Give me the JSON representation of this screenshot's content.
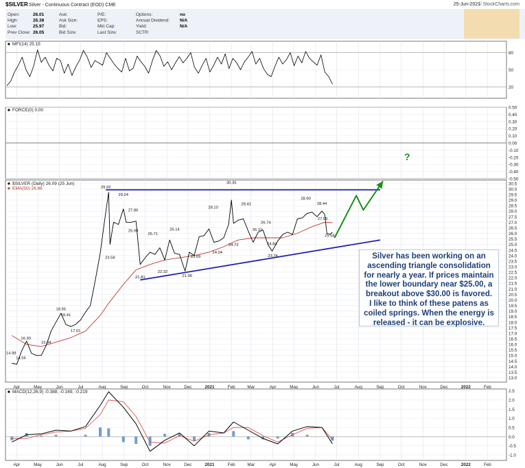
{
  "header": {
    "title_symbol": "$SILVER",
    "title_desc": "Silver - Continuous Contract (EOD) CME",
    "date": "25-Jun-2021",
    "source": "© StockCharts.com",
    "quote": [
      {
        "label": "Open:",
        "value": "26.01"
      },
      {
        "label": "High:",
        "value": "26.38"
      },
      {
        "label": "Low:",
        "value": "25.97"
      },
      {
        "label": "Prev Close:",
        "value": "26.05"
      },
      {
        "label": "Ask:",
        "value": ""
      },
      {
        "label": "Ask Size:",
        "value": ""
      },
      {
        "label": "Bid:",
        "value": ""
      },
      {
        "label": "Bid Size:",
        "value": ""
      },
      {
        "label": "P/E:",
        "value": ""
      },
      {
        "label": "EPS:",
        "value": ""
      },
      {
        "label": "Mkt Cap:",
        "value": ""
      },
      {
        "label": "Last Size:",
        "value": ""
      },
      {
        "label": "Options:",
        "value": "no"
      },
      {
        "label": "Annual Dividend:",
        "value": "N/A"
      },
      {
        "label": "Yield:",
        "value": "N/A"
      },
      {
        "label": "SCTR:",
        "value": ""
      }
    ]
  },
  "colors": {
    "price": "#000000",
    "ema": "#c0392b",
    "trendline": "#1f1fb4",
    "forecast": "#1a8f1a",
    "macd": "#000000",
    "signal": "#d9534f",
    "histogram": "#3f7fbf",
    "annotation_text": "#1c3f7a"
  },
  "annotation": {
    "text": "Silver has been working on an ascending triangle consolidation for nearly a year. If prices maintain the lower boundary near $25.00, a breakout above $30.00 is favored. I like to think of these patens as coiled springs. When the energy is released - it can be explosive.",
    "question_mark": "?"
  },
  "chart_data": [
    {
      "type": "line",
      "panel": "mfi",
      "title": "MFI(14) 25.15",
      "y_ticks": [
        "80",
        "50",
        "20"
      ],
      "ylim": [
        0,
        100
      ],
      "x_ticks": [
        "Apr",
        "May",
        "Jun",
        "Jul",
        "Aug",
        "Sep",
        "Oct",
        "Nov",
        "Dec",
        "2021",
        "Feb",
        "Mar",
        "Apr",
        "May",
        "Jun",
        "Jul"
      ],
      "values": [
        22,
        30,
        46,
        58,
        72,
        50,
        38,
        57,
        85,
        63,
        72,
        58,
        48,
        70,
        66,
        44,
        60,
        40,
        55,
        67,
        84,
        72,
        54,
        66,
        62,
        58,
        80,
        70,
        60,
        52,
        46,
        70,
        48,
        53,
        74,
        64,
        56,
        44,
        66,
        84,
        74,
        56,
        64,
        50,
        62,
        73,
        62,
        70,
        80,
        54,
        44,
        58,
        70,
        46,
        58,
        72,
        60,
        78,
        52,
        70,
        62,
        50,
        64,
        72,
        82,
        60,
        70,
        52,
        42,
        38,
        56,
        72,
        60,
        68,
        80,
        57,
        74,
        62,
        82,
        70,
        64,
        58,
        76,
        46,
        38,
        25
      ]
    },
    {
      "type": "line",
      "panel": "force",
      "title": "FORCE(0) 0.00",
      "y_ticks": [
        "0.50",
        "0.40",
        "0.30",
        "0.20",
        "0.10",
        "0.00",
        "-0.10",
        "-0.20",
        "-0.30",
        "-0.40",
        "-0.50"
      ],
      "ylim": [
        -0.5,
        0.5
      ],
      "values": [
        0
      ]
    },
    {
      "type": "line",
      "panel": "price",
      "title": "$SILVER (Daily) 26.09 (25 Jun)",
      "ema_label": "EMA(50) 26.96",
      "x_ticks": [
        "Apr",
        "May",
        "Jun",
        "Jul",
        "Aug",
        "Sep",
        "Oct",
        "Nov",
        "Dec",
        "2021",
        "Feb",
        "Mar",
        "Apr",
        "May",
        "Jun",
        "Jul",
        "Aug",
        "Sep",
        "Oct",
        "Nov",
        "Dec",
        "2022",
        "Feb"
      ],
      "y_ticks": [
        "30.5",
        "30.0",
        "29.5",
        "29.0",
        "28.5",
        "28.0",
        "27.5",
        "27.0",
        "26.5",
        "26.0",
        "25.5",
        "25.0",
        "24.5",
        "24.0",
        "23.5",
        "23.0",
        "22.5",
        "22.0",
        "21.5",
        "21.0",
        "20.5",
        "20.0",
        "19.5",
        "19.0",
        "18.5",
        "18.0",
        "17.5",
        "17.0",
        "16.5",
        "16.0",
        "15.5",
        "15.0",
        "14.5",
        "14.0",
        "13.5",
        "13.0"
      ],
      "ylim": [
        12.6,
        30.8
      ],
      "price": [
        [
          "2020-03-25",
          14.3
        ],
        [
          "2020-04-01",
          14.2
        ],
        [
          "2020-04-08",
          15.4
        ],
        [
          "2020-04-15",
          16.3
        ],
        [
          "2020-04-22",
          15.2
        ],
        [
          "2020-04-29",
          15.0
        ],
        [
          "2020-05-06",
          15.0
        ],
        [
          "2020-05-13",
          15.9
        ],
        [
          "2020-05-20",
          17.2
        ],
        [
          "2020-05-27",
          18.0
        ],
        [
          "2020-06-03",
          18.8
        ],
        [
          "2020-06-10",
          17.8
        ],
        [
          "2020-06-17",
          17.6
        ],
        [
          "2020-06-24",
          17.8
        ],
        [
          "2020-07-01",
          18.2
        ],
        [
          "2020-07-08",
          18.9
        ],
        [
          "2020-07-15",
          19.5
        ],
        [
          "2020-07-22",
          21.8
        ],
        [
          "2020-07-29",
          24.2
        ],
        [
          "2020-08-05",
          27.5
        ],
        [
          "2020-08-10",
          29.7
        ],
        [
          "2020-08-12",
          25.0
        ],
        [
          "2020-08-17",
          27.0
        ],
        [
          "2020-08-24",
          26.8
        ],
        [
          "2020-08-31",
          28.2
        ],
        [
          "2020-09-04",
          27.0
        ],
        [
          "2020-09-11",
          27.0
        ],
        [
          "2020-09-18",
          27.1
        ],
        [
          "2020-09-24",
          23.2
        ],
        [
          "2020-10-01",
          23.8
        ],
        [
          "2020-10-08",
          24.3
        ],
        [
          "2020-10-15",
          24.1
        ],
        [
          "2020-10-22",
          24.7
        ],
        [
          "2020-10-29",
          23.6
        ],
        [
          "2020-11-05",
          25.4
        ],
        [
          "2020-11-12",
          24.2
        ],
        [
          "2020-11-19",
          24.1
        ],
        [
          "2020-11-27",
          22.6
        ],
        [
          "2020-12-03",
          24.3
        ],
        [
          "2020-12-10",
          24.0
        ],
        [
          "2020-12-17",
          25.7
        ],
        [
          "2020-12-24",
          25.8
        ],
        [
          "2020-12-31",
          26.4
        ],
        [
          "2021-01-07",
          25.2
        ],
        [
          "2021-01-14",
          25.3
        ],
        [
          "2021-01-21",
          25.6
        ],
        [
          "2021-01-28",
          26.8
        ],
        [
          "2021-02-01",
          29.0
        ],
        [
          "2021-02-04",
          26.9
        ],
        [
          "2021-02-11",
          27.2
        ],
        [
          "2021-02-18",
          27.3
        ],
        [
          "2021-02-25",
          26.2
        ],
        [
          "2021-03-04",
          25.2
        ],
        [
          "2021-03-11",
          26.1
        ],
        [
          "2021-03-18",
          26.3
        ],
        [
          "2021-03-25",
          25.0
        ],
        [
          "2021-03-31",
          24.4
        ],
        [
          "2021-04-08",
          25.3
        ],
        [
          "2021-04-15",
          25.9
        ],
        [
          "2021-04-22",
          26.1
        ],
        [
          "2021-04-29",
          25.9
        ],
        [
          "2021-05-06",
          27.3
        ],
        [
          "2021-05-13",
          27.4
        ],
        [
          "2021-05-20",
          27.8
        ],
        [
          "2021-05-27",
          27.9
        ],
        [
          "2021-06-03",
          27.5
        ],
        [
          "2021-06-10",
          28.0
        ],
        [
          "2021-06-14",
          27.7
        ],
        [
          "2021-06-17",
          26.0
        ],
        [
          "2021-06-21",
          25.9
        ],
        [
          "2021-06-25",
          26.1
        ]
      ],
      "ema": [
        [
          "2020-03-25",
          16.8
        ],
        [
          "2020-04-15",
          16.0
        ],
        [
          "2020-05-06",
          15.8
        ],
        [
          "2020-05-27",
          16.2
        ],
        [
          "2020-06-17",
          16.6
        ],
        [
          "2020-07-08",
          17.2
        ],
        [
          "2020-07-29",
          18.6
        ],
        [
          "2020-08-10",
          19.7
        ],
        [
          "2020-08-31",
          21.4
        ],
        [
          "2020-09-18",
          22.7
        ],
        [
          "2020-10-08",
          23.2
        ],
        [
          "2020-10-29",
          23.6
        ],
        [
          "2020-11-19",
          23.8
        ],
        [
          "2020-12-10",
          24.0
        ],
        [
          "2020-12-31",
          24.3
        ],
        [
          "2021-01-21",
          24.8
        ],
        [
          "2021-02-11",
          25.4
        ],
        [
          "2021-03-04",
          25.6
        ],
        [
          "2021-03-25",
          25.6
        ],
        [
          "2021-04-15",
          25.6
        ],
        [
          "2021-05-06",
          26.0
        ],
        [
          "2021-05-27",
          26.6
        ],
        [
          "2021-06-14",
          27.0
        ],
        [
          "2021-06-25",
          26.96
        ]
      ],
      "point_labels": [
        {
          "date": "2020-03-24",
          "value": 14.98,
          "text": "14.98"
        },
        {
          "date": "2020-04-14",
          "value": 16.3,
          "text": "16.30"
        },
        {
          "date": "2020-04-07",
          "value": 14.56,
          "text": "14.56"
        },
        {
          "date": "2020-05-13",
          "value": 15.94,
          "text": "15.94"
        },
        {
          "date": "2020-06-03",
          "value": 18.95,
          "text": "18.95"
        },
        {
          "date": "2020-06-10",
          "value": 18.41,
          "text": "18.41"
        },
        {
          "date": "2020-06-24",
          "value": 17.01,
          "text": "17.01"
        },
        {
          "date": "2020-08-06",
          "value": 29.92,
          "text": "29.92"
        },
        {
          "date": "2020-08-12",
          "value": 23.58,
          "text": "23.58"
        },
        {
          "date": "2020-08-31",
          "value": 29.24,
          "text": "29.24"
        },
        {
          "date": "2020-09-14",
          "value": 27.86,
          "text": "27.86"
        },
        {
          "date": "2020-09-14",
          "value": 25.99,
          "text": "25.99"
        },
        {
          "date": "2020-09-24",
          "value": 21.81,
          "text": "21.81"
        },
        {
          "date": "2020-10-12",
          "value": 25.71,
          "text": "25.71"
        },
        {
          "date": "2020-10-26",
          "value": 22.32,
          "text": "22.32"
        },
        {
          "date": "2020-11-12",
          "value": 26.14,
          "text": "26.14"
        },
        {
          "date": "2020-11-30",
          "value": 21.96,
          "text": "21.96"
        },
        {
          "date": "2020-12-12",
          "value": 23.69,
          "text": "23.69"
        },
        {
          "date": "2021-01-06",
          "value": 28.1,
          "text": "28.10"
        },
        {
          "date": "2021-01-12",
          "value": 24.04,
          "text": "24.04"
        },
        {
          "date": "2021-02-01",
          "value": 30.35,
          "text": "30.35"
        },
        {
          "date": "2021-02-04",
          "value": 24.72,
          "text": "24.72"
        },
        {
          "date": "2021-02-22",
          "value": 28.42,
          "text": "28.42"
        },
        {
          "date": "2021-03-10",
          "value": 26.1,
          "text": "26.10"
        },
        {
          "date": "2021-03-22",
          "value": 26.74,
          "text": "26.74"
        },
        {
          "date": "2021-03-31",
          "value": 24.84,
          "text": "24.84"
        },
        {
          "date": "2021-04-01",
          "value": 23.74,
          "text": "23.74"
        },
        {
          "date": "2021-05-18",
          "value": 28.9,
          "text": "28.90"
        },
        {
          "date": "2021-06-10",
          "value": 28.44,
          "text": "28.44"
        },
        {
          "date": "2021-06-11",
          "value": 27.09,
          "text": "27.09"
        },
        {
          "date": "2021-06-21",
          "value": 25.58,
          "text": "25.58"
        }
      ],
      "trendlines": [
        {
          "name": "resistance",
          "from": [
            "2020-08-06",
            29.92
          ],
          "to": [
            "2021-09-01",
            29.92
          ]
        },
        {
          "name": "support",
          "from": [
            "2020-09-24",
            21.8
          ],
          "to": [
            "2021-09-01",
            25.4
          ]
        }
      ],
      "forecast": [
        [
          "2021-06-28",
          25.6
        ],
        [
          "2021-07-29",
          29.4
        ],
        [
          "2021-08-08",
          28.1
        ],
        [
          "2021-09-05",
          30.7
        ]
      ]
    },
    {
      "type": "line",
      "panel": "macd",
      "title": "MACD(12,26,9) -0.388, -0.169, -0.219",
      "y_ticks": [
        "2.5",
        "2.0",
        "1.5",
        "1.0",
        "0.5",
        "0.0",
        "-0.5",
        "-1.0"
      ],
      "ylim": [
        -1.3,
        2.6
      ],
      "x_ticks": [
        "Apr",
        "May",
        "Jun",
        "Jul",
        "Aug",
        "Sep",
        "Oct",
        "Nov",
        "Dec",
        "2021",
        "Feb",
        "Mar",
        "Apr",
        "May",
        "Jun",
        "Jul",
        "Aug",
        "Sep",
        "Oct",
        "Nov",
        "Dec",
        "2022",
        "Feb"
      ],
      "macd": [
        [
          "2020-03-25",
          -0.3
        ],
        [
          "2020-04-15",
          0.1
        ],
        [
          "2020-05-06",
          0.15
        ],
        [
          "2020-05-27",
          0.35
        ],
        [
          "2020-06-17",
          0.3
        ],
        [
          "2020-07-08",
          0.55
        ],
        [
          "2020-07-29",
          1.7
        ],
        [
          "2020-08-10",
          2.45
        ],
        [
          "2020-08-31",
          1.6
        ],
        [
          "2020-09-18",
          0.7
        ],
        [
          "2020-10-08",
          -0.8
        ],
        [
          "2020-10-29",
          -0.2
        ],
        [
          "2020-11-19",
          0.2
        ],
        [
          "2020-12-10",
          -0.5
        ],
        [
          "2020-12-31",
          0.3
        ],
        [
          "2021-01-21",
          0.2
        ],
        [
          "2021-02-04",
          0.8
        ],
        [
          "2021-02-25",
          0.35
        ],
        [
          "2021-03-18",
          -0.1
        ],
        [
          "2021-04-08",
          -0.4
        ],
        [
          "2021-04-29",
          0.3
        ],
        [
          "2021-05-20",
          0.55
        ],
        [
          "2021-06-10",
          0.5
        ],
        [
          "2021-06-25",
          -0.39
        ]
      ],
      "signal": [
        [
          "2020-03-25",
          -0.1
        ],
        [
          "2020-04-15",
          -0.1
        ],
        [
          "2020-05-06",
          0.1
        ],
        [
          "2020-05-27",
          0.25
        ],
        [
          "2020-06-17",
          0.3
        ],
        [
          "2020-07-08",
          0.45
        ],
        [
          "2020-07-29",
          1.2
        ],
        [
          "2020-08-10",
          2.0
        ],
        [
          "2020-08-31",
          1.9
        ],
        [
          "2020-09-18",
          1.1
        ],
        [
          "2020-10-08",
          -0.3
        ],
        [
          "2020-10-29",
          -0.35
        ],
        [
          "2020-11-19",
          0.05
        ],
        [
          "2020-12-10",
          -0.25
        ],
        [
          "2020-12-31",
          0.1
        ],
        [
          "2021-01-21",
          0.2
        ],
        [
          "2021-02-04",
          0.5
        ],
        [
          "2021-02-25",
          0.5
        ],
        [
          "2021-03-18",
          0.05
        ],
        [
          "2021-04-08",
          -0.3
        ],
        [
          "2021-04-29",
          0.1
        ],
        [
          "2021-05-20",
          0.45
        ],
        [
          "2021-06-10",
          0.5
        ],
        [
          "2021-06-25",
          -0.17
        ]
      ]
    }
  ]
}
